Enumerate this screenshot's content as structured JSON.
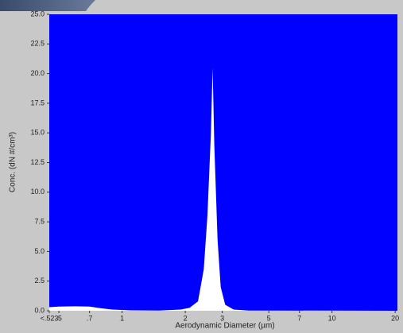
{
  "chart_data": {
    "type": "area",
    "x_label": "Aerodynamic Diameter (µm)",
    "y_label": "Conc. (dN #/cm³)",
    "x_scale": "log",
    "color": "#ffffff",
    "background": "#0000ff",
    "x": [
      0.45,
      0.5,
      0.6,
      0.7,
      0.8,
      0.9,
      1.1,
      1.5,
      1.9,
      2.1,
      2.3,
      2.45,
      2.55,
      2.65,
      2.7,
      2.75,
      2.85,
      2.95,
      3.1,
      3.4,
      4,
      20
    ],
    "values": [
      0.3,
      0.35,
      0.38,
      0.35,
      0.2,
      0.1,
      0.03,
      0.02,
      0.1,
      0.25,
      0.8,
      3.5,
      8,
      15,
      20.5,
      14,
      6,
      2,
      0.5,
      0.1,
      0.02,
      0
    ],
    "xlim": [
      0.45,
      20.5
    ],
    "xticks": [
      {
        "value": 0.45,
        "label": "<.523"
      },
      {
        "value": 0.5,
        "label": ".5"
      },
      {
        "value": 0.7,
        "label": ".7"
      },
      1,
      2,
      3,
      5,
      7,
      10,
      20
    ],
    "ylim": [
      0,
      25
    ],
    "yticks": [
      {
        "value": 0,
        "label": "0.0"
      },
      2.5,
      {
        "value": 5,
        "label": "5.0"
      },
      7.5,
      {
        "value": 10,
        "label": "10.0"
      },
      12.5,
      {
        "value": 15,
        "label": "15.0"
      },
      17.5,
      {
        "value": 20,
        "label": "20.0"
      },
      22.5,
      {
        "value": 25,
        "label": "25.0"
      }
    ]
  }
}
